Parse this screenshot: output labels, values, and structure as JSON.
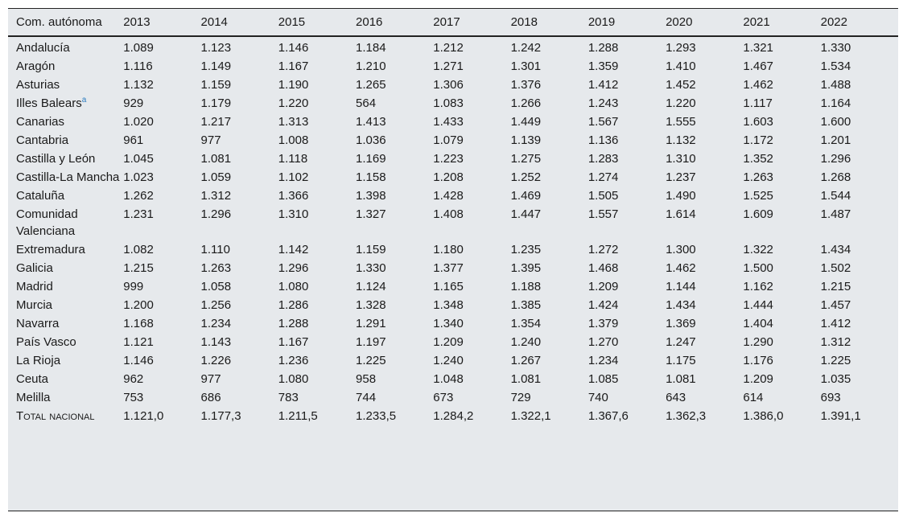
{
  "table": {
    "headers": [
      "Com. autónoma",
      "2013",
      "2014",
      "2015",
      "2016",
      "2017",
      "2018",
      "2019",
      "2020",
      "2021",
      "2022"
    ],
    "rows": [
      {
        "label": "Andalucía",
        "values": [
          "1.089",
          "1.123",
          "1.146",
          "1.184",
          "1.212",
          "1.242",
          "1.288",
          "1.293",
          "1.321",
          "1.330"
        ]
      },
      {
        "label": "Aragón",
        "values": [
          "1.116",
          "1.149",
          "1.167",
          "1.210",
          "1.271",
          "1.301",
          "1.359",
          "1.410",
          "1.467",
          "1.534"
        ]
      },
      {
        "label": "Asturias",
        "values": [
          "1.132",
          "1.159",
          "1.190",
          "1.265",
          "1.306",
          "1.376",
          "1.412",
          "1.452",
          "1.462",
          "1.488"
        ]
      },
      {
        "label": "Illes Balears",
        "footnote": "a",
        "values": [
          "929",
          "1.179",
          "1.220",
          "564",
          "1.083",
          "1.266",
          "1.243",
          "1.220",
          "1.117",
          "1.164"
        ]
      },
      {
        "label": "Canarias",
        "values": [
          "1.020",
          "1.217",
          "1.313",
          "1.413",
          "1.433",
          "1.449",
          "1.567",
          "1.555",
          "1.603",
          "1.600"
        ]
      },
      {
        "label": "Cantabria",
        "values": [
          "961",
          "977",
          "1.008",
          "1.036",
          "1.079",
          "1.139",
          "1.136",
          "1.132",
          "1.172",
          "1.201"
        ]
      },
      {
        "label": "Castilla y León",
        "values": [
          "1.045",
          "1.081",
          "1.118",
          "1.169",
          "1.223",
          "1.275",
          "1.283",
          "1.310",
          "1.352",
          "1.296"
        ]
      },
      {
        "label": "Castilla-La Mancha",
        "values": [
          "1.023",
          "1.059",
          "1.102",
          "1.158",
          "1.208",
          "1.252",
          "1.274",
          "1.237",
          "1.263",
          "1.268"
        ]
      },
      {
        "label": "Cataluña",
        "values": [
          "1.262",
          "1.312",
          "1.366",
          "1.398",
          "1.428",
          "1.469",
          "1.505",
          "1.490",
          "1.525",
          "1.544"
        ]
      },
      {
        "label": "Comunidad Valenciana",
        "values": [
          "1.231",
          "1.296",
          "1.310",
          "1.327",
          "1.408",
          "1.447",
          "1.557",
          "1.614",
          "1.609",
          "1.487"
        ]
      },
      {
        "label": "Extremadura",
        "values": [
          "1.082",
          "1.110",
          "1.142",
          "1.159",
          "1.180",
          "1.235",
          "1.272",
          "1.300",
          "1.322",
          "1.434"
        ]
      },
      {
        "label": "Galicia",
        "values": [
          "1.215",
          "1.263",
          "1.296",
          "1.330",
          "1.377",
          "1.395",
          "1.468",
          "1.462",
          "1.500",
          "1.502"
        ]
      },
      {
        "label": "Madrid",
        "values": [
          "999",
          "1.058",
          "1.080",
          "1.124",
          "1.165",
          "1.188",
          "1.209",
          "1.144",
          "1.162",
          "1.215"
        ]
      },
      {
        "label": "Murcia",
        "values": [
          "1.200",
          "1.256",
          "1.286",
          "1.328",
          "1.348",
          "1.385",
          "1.424",
          "1.434",
          "1.444",
          "1.457"
        ]
      },
      {
        "label": "Navarra",
        "values": [
          "1.168",
          "1.234",
          "1.288",
          "1.291",
          "1.340",
          "1.354",
          "1.379",
          "1.369",
          "1.404",
          "1.412"
        ]
      },
      {
        "label": "País Vasco",
        "values": [
          "1.121",
          "1.143",
          "1.167",
          "1.197",
          "1.209",
          "1.240",
          "1.270",
          "1.247",
          "1.290",
          "1.312"
        ]
      },
      {
        "label": "La Rioja",
        "values": [
          "1.146",
          "1.226",
          "1.236",
          "1.225",
          "1.240",
          "1.267",
          "1.234",
          "1.175",
          "1.176",
          "1.225"
        ]
      },
      {
        "label": "Ceuta",
        "values": [
          "962",
          "977",
          "1.080",
          "958",
          "1.048",
          "1.081",
          "1.085",
          "1.081",
          "1.209",
          "1.035"
        ]
      },
      {
        "label": "Melilla",
        "values": [
          "753",
          "686",
          "783",
          "744",
          "673",
          "729",
          "740",
          "643",
          "614",
          "693"
        ]
      }
    ],
    "total": {
      "label": "Total nacional",
      "values": [
        "1.121,0",
        "1.177,3",
        "1.211,5",
        "1.233,5",
        "1.284,2",
        "1.322,1",
        "1.367,6",
        "1.362,3",
        "1.386,0",
        "1.391,1"
      ]
    }
  }
}
